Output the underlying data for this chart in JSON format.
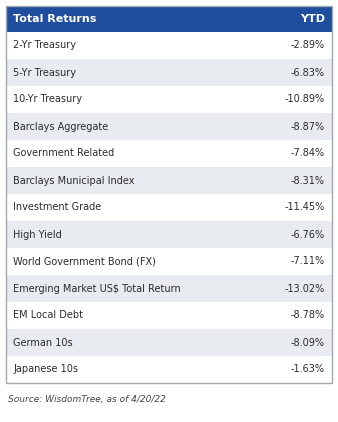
{
  "header": [
    "Total Returns",
    "YTD"
  ],
  "rows": [
    [
      "2-Yr Treasury",
      "-2.89%"
    ],
    [
      "5-Yr Treasury",
      "-6.83%"
    ],
    [
      "10-Yr Treasury",
      "-10.89%"
    ],
    [
      "Barclays Aggregate",
      "-8.87%"
    ],
    [
      "Government Related",
      "-7.84%"
    ],
    [
      "Barclays Municipal Index",
      "-8.31%"
    ],
    [
      "Investment Grade",
      "-11.45%"
    ],
    [
      "High Yield",
      "-6.76%"
    ],
    [
      "World Government Bond (FX)",
      "-7.11%"
    ],
    [
      "Emerging Market US$ Total Return",
      "-13.02%"
    ],
    [
      "EM Local Debt",
      "-8.78%"
    ],
    [
      "German 10s",
      "-8.09%"
    ],
    [
      "Japanese 10s",
      "-1.63%"
    ]
  ],
  "header_bg": "#1F4E9F",
  "header_text_color": "#FFFFFF",
  "row_bg_odd": "#FFFFFF",
  "row_bg_even": "#E8EBF0",
  "row_text_color": "#2B2B2B",
  "footer": "Source: WisdomTree, as of 4/20/22",
  "footer_color": "#444444",
  "fig_bg": "#FFFFFF",
  "outer_border_color": "#A0A8B0",
  "header_fontsize": 8.0,
  "row_fontsize": 7.0,
  "footer_fontsize": 6.5
}
